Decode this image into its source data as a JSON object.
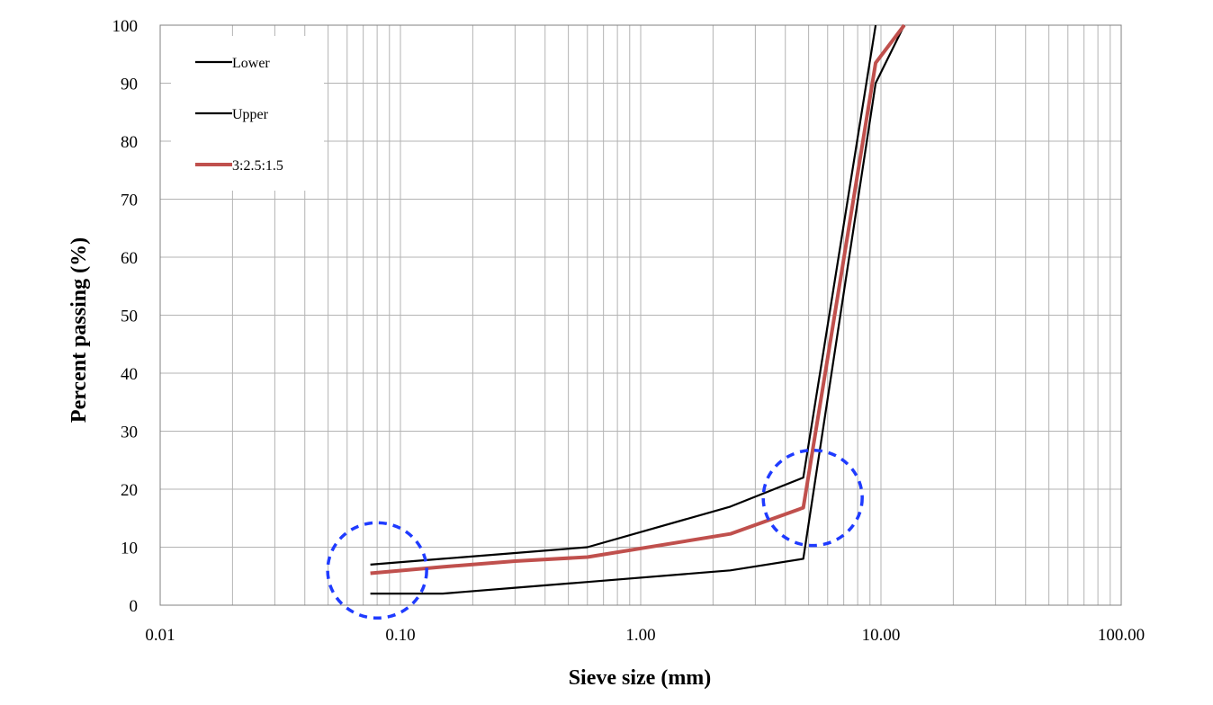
{
  "chart_data": {
    "type": "line",
    "xlabel": "Sieve size (mm)",
    "ylabel": "Percent passing  (%)",
    "x_scale": "log",
    "xlim": [
      0.01,
      100
    ],
    "ylim": [
      0,
      100
    ],
    "x_tick_labels": [
      "0.01",
      "0.10",
      "1.00",
      "10.00",
      "100.00"
    ],
    "y_tick_labels": [
      "0",
      "10",
      "20",
      "30",
      "40",
      "50",
      "60",
      "70",
      "80",
      "90",
      "100"
    ],
    "grid": true,
    "legend_position": "top-left",
    "series": [
      {
        "name": "Lower",
        "color": "#000000",
        "points": [
          [
            0.075,
            2
          ],
          [
            0.15,
            2
          ],
          [
            0.3,
            3
          ],
          [
            0.6,
            4
          ],
          [
            2.36,
            6
          ],
          [
            4.75,
            8
          ],
          [
            9.5,
            90
          ],
          [
            12.5,
            100
          ]
        ]
      },
      {
        "name": "Upper",
        "color": "#000000",
        "points": [
          [
            0.075,
            7
          ],
          [
            0.15,
            8
          ],
          [
            0.3,
            9
          ],
          [
            0.6,
            10
          ],
          [
            2.36,
            17
          ],
          [
            4.75,
            22
          ],
          [
            9.5,
            100
          ]
        ]
      },
      {
        "name": "3:2.5:1.5",
        "color": "#c0504d",
        "points": [
          [
            0.075,
            5.5
          ],
          [
            0.15,
            6.6
          ],
          [
            0.3,
            7.6
          ],
          [
            0.6,
            8.3
          ],
          [
            2.36,
            12.3
          ],
          [
            4.75,
            16.8
          ],
          [
            9.5,
            93.5
          ],
          [
            12.5,
            100
          ]
        ]
      }
    ],
    "annotations": [
      {
        "type": "dashed-circle",
        "color": "#1f3bff",
        "x": 0.08,
        "y": 6
      },
      {
        "type": "dashed-circle",
        "color": "#1f3bff",
        "x": 5.2,
        "y": 18.5
      }
    ]
  }
}
